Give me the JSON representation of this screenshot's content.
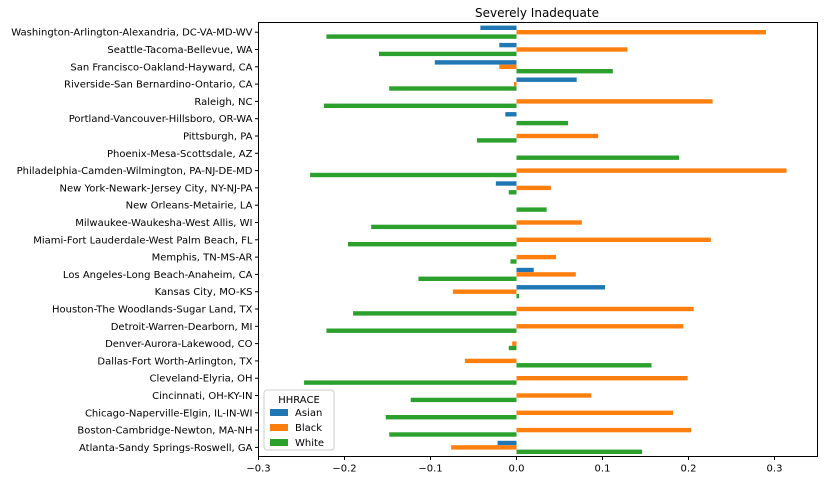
{
  "chart_data": {
    "type": "bar",
    "orientation": "horizontal",
    "title": "Severely Inadequate",
    "xlabel": "",
    "ylabel": "",
    "xlim": [
      -0.3,
      0.35
    ],
    "x_ticks": [
      -0.3,
      -0.2,
      -0.1,
      0.0,
      0.1,
      0.2,
      0.3
    ],
    "x_tick_labels": [
      "−0.3",
      "−0.2",
      "−0.1",
      "0.0",
      "0.1",
      "0.2",
      "0.3"
    ],
    "grid": false,
    "legend": {
      "title": "HHRACE",
      "position": "lower-left"
    },
    "categories": [
      "Atlanta-Sandy Springs-Roswell, GA",
      "Boston-Cambridge-Newton, MA-NH",
      "Chicago-Naperville-Elgin, IL-IN-WI",
      "Cincinnati, OH-KY-IN",
      "Cleveland-Elyria, OH",
      "Dallas-Fort Worth-Arlington, TX",
      "Denver-Aurora-Lakewood, CO",
      "Detroit-Warren-Dearborn, MI",
      "Houston-The Woodlands-Sugar Land, TX",
      "Kansas City, MO-KS",
      "Los Angeles-Long Beach-Anaheim, CA",
      "Memphis, TN-MS-AR",
      "Miami-Fort Lauderdale-West Palm Beach, FL",
      "Milwaukee-Waukesha-West Allis, WI",
      "New Orleans-Metairie, LA",
      "New York-Newark-Jersey City, NY-NJ-PA",
      "Philadelphia-Camden-Wilmington, PA-NJ-DE-MD",
      "Phoenix-Mesa-Scottsdale, AZ",
      "Pittsburgh, PA",
      "Portland-Vancouver-Hillsboro, OR-WA",
      "Raleigh, NC",
      "Riverside-San Bernardino-Ontario, CA",
      "San Francisco-Oakland-Hayward, CA",
      "Seattle-Tacoma-Bellevue, WA",
      "Washington-Arlington-Alexandria, DC-VA-MD-WV"
    ],
    "series": [
      {
        "name": "Asian",
        "color": "#1f77b4",
        "values": [
          -0.022,
          0,
          0,
          0,
          0,
          0,
          0,
          0,
          0,
          0.103,
          0.02,
          0,
          0,
          0,
          0,
          -0.024,
          0,
          0,
          0,
          -0.013,
          0,
          0.07,
          -0.095,
          -0.02,
          -0.042
        ]
      },
      {
        "name": "Black",
        "color": "#ff7f0e",
        "values": [
          -0.076,
          0.203,
          0.182,
          0.087,
          0.199,
          -0.06,
          -0.005,
          0.194,
          0.206,
          -0.074,
          0.069,
          0.046,
          0.226,
          0.076,
          0,
          0.04,
          0.314,
          0,
          0.095,
          0,
          0.228,
          -0.003,
          -0.02,
          0.129,
          0.29
        ]
      },
      {
        "name": "White",
        "color": "#2ca02c",
        "values": [
          0.146,
          -0.148,
          -0.152,
          -0.123,
          -0.247,
          0.157,
          -0.009,
          -0.221,
          -0.19,
          0.003,
          -0.114,
          -0.007,
          -0.196,
          -0.169,
          0.035,
          -0.009,
          -0.24,
          0.189,
          -0.046,
          0.06,
          -0.224,
          -0.148,
          0.112,
          -0.16,
          -0.221
        ]
      }
    ]
  }
}
